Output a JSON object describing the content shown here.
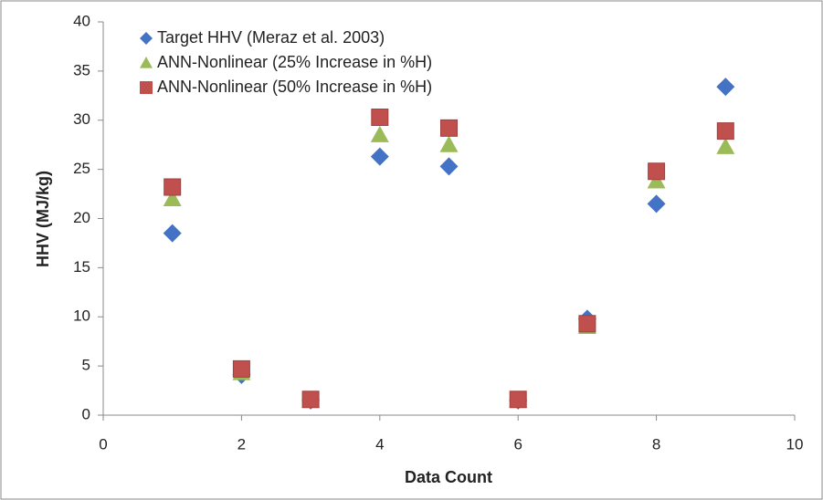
{
  "chart_data": {
    "type": "scatter",
    "x_label": "Data Count",
    "y_label": "HHV (MJ/kg)",
    "x": [
      1,
      2,
      3,
      4,
      5,
      6,
      7,
      8,
      9
    ],
    "series": [
      {
        "name": "Target HHV (Meraz et al. 2003)",
        "color": "#4472c4",
        "marker": "diamond",
        "values": [
          18.5,
          4.1,
          1.5,
          26.3,
          25.3,
          1.5,
          9.8,
          21.5,
          33.4
        ]
      },
      {
        "name": "ANN-Nonlinear (25% Increase in %H)",
        "color": "#9bbb59",
        "marker": "triangle",
        "values": [
          22.0,
          4.3,
          1.5,
          28.5,
          27.5,
          1.5,
          9.0,
          23.8,
          27.3
        ]
      },
      {
        "name": "ANN-Nonlinear (50% Increase in %H)",
        "color": "#c0504d",
        "marker": "square",
        "values": [
          23.2,
          4.7,
          1.6,
          30.3,
          29.2,
          1.6,
          9.3,
          24.8,
          28.9
        ]
      }
    ],
    "xlim": [
      0,
      10
    ],
    "xticks": [
      0,
      2,
      4,
      6,
      8,
      10
    ],
    "ylim": [
      0,
      40
    ],
    "yticks": [
      0,
      5,
      10,
      15,
      20,
      25,
      30,
      35,
      40
    ],
    "grid": false,
    "legend": "top-left"
  }
}
